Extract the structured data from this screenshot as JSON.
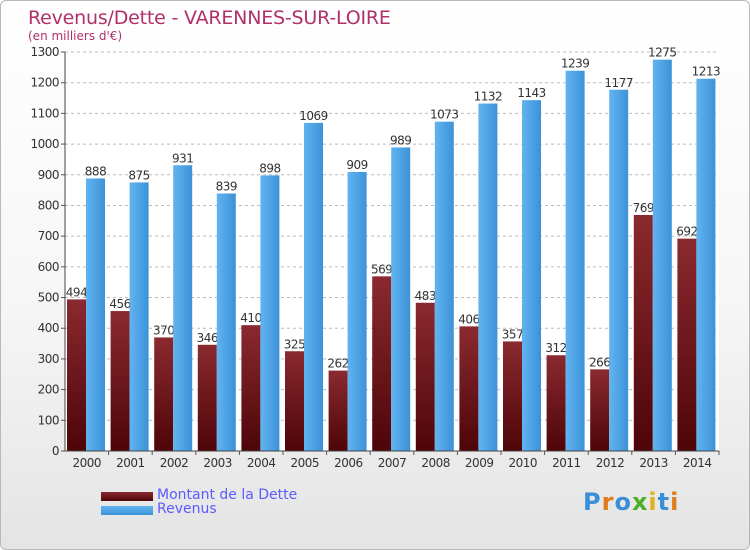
{
  "chart_data": {
    "type": "bar",
    "title": "Revenus/Dette - VARENNES-SUR-LOIRE",
    "subtitle": "(en milliers d'€)",
    "categories": [
      "2000",
      "2001",
      "2002",
      "2003",
      "2004",
      "2005",
      "2006",
      "2007",
      "2008",
      "2009",
      "2010",
      "2011",
      "2012",
      "2013",
      "2014"
    ],
    "series": [
      {
        "name": "Montant de la Dette",
        "color": "#6e0f14",
        "values": [
          494,
          456,
          370,
          346,
          410,
          325,
          262,
          569,
          483,
          406,
          357,
          312,
          266,
          769,
          692
        ]
      },
      {
        "name": "Revenus",
        "color": "#4aa1e6",
        "values": [
          888,
          875,
          931,
          839,
          898,
          1069,
          909,
          989,
          1073,
          1132,
          1143,
          1239,
          1177,
          1275,
          1213
        ]
      }
    ],
    "ylim": [
      0,
      1300
    ],
    "yticks": [
      0,
      100,
      200,
      300,
      400,
      500,
      600,
      700,
      800,
      900,
      1000,
      1100,
      1200,
      1300
    ],
    "grid": true,
    "legend_position": "bottom-left"
  },
  "logo": {
    "text": "Proxiti"
  }
}
